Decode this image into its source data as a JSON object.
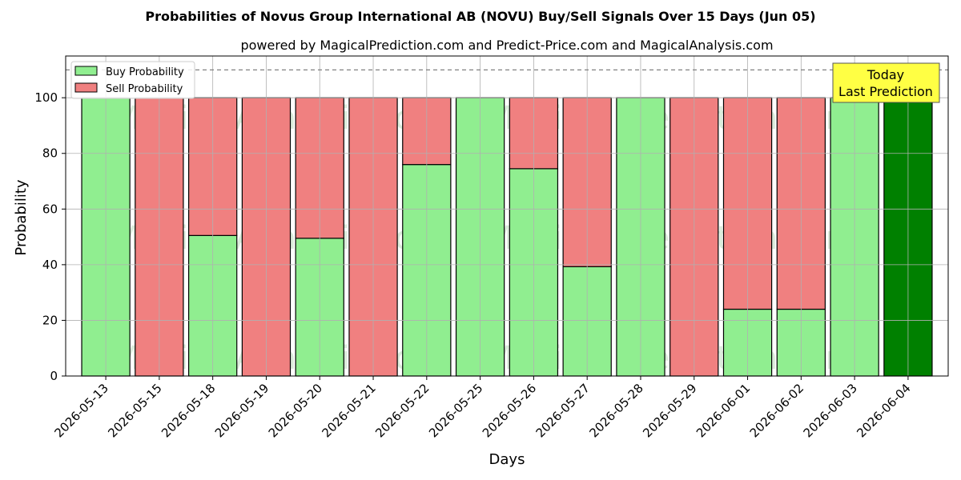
{
  "chart_data": {
    "type": "bar",
    "stacked": true,
    "title": "Probabilities of Novus Group International AB (NOVU) Buy/Sell Signals Over 15 Days (Jun 05)",
    "subtitle": "powered by MagicalPrediction.com and Predict-Price.com and MagicalAnalysis.com",
    "xlabel": "Days",
    "ylabel": "Probability",
    "ylim": [
      0,
      115
    ],
    "yticks": [
      0,
      20,
      40,
      60,
      80,
      100
    ],
    "grid": true,
    "legend_position": "top-left",
    "categories": [
      "2026-05-13",
      "2026-05-15",
      "2026-05-18",
      "2026-05-19",
      "2026-05-20",
      "2026-05-21",
      "2026-05-22",
      "2026-05-25",
      "2026-05-26",
      "2026-05-27",
      "2026-05-28",
      "2026-05-29",
      "2026-06-01",
      "2026-06-02",
      "2026-06-03",
      "2026-06-04"
    ],
    "series": [
      {
        "name": "Buy Probability",
        "color": "#90ee90",
        "values": [
          100,
          0,
          50.5,
          0,
          49.5,
          0,
          76,
          100,
          74.5,
          39.3,
          100,
          0,
          24,
          24,
          100,
          100
        ]
      },
      {
        "name": "Sell Probability",
        "color": "#f08080",
        "values": [
          0,
          100,
          49.5,
          100,
          50.5,
          100,
          24,
          0,
          25.5,
          60.7,
          0,
          100,
          76,
          76,
          0,
          0
        ]
      }
    ],
    "highlight": {
      "index": 15,
      "color": "#008000"
    },
    "reference_line": {
      "y": 110,
      "style": "dashed",
      "color": "#808080"
    },
    "annotation": {
      "lines": [
        "Today",
        "Last Prediction"
      ],
      "background": "#ffff44"
    },
    "watermarks": [
      "MagicalAnalysis.com",
      "Magical Prediction.com"
    ]
  }
}
